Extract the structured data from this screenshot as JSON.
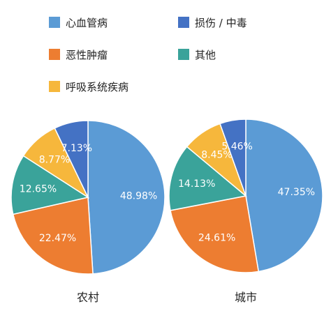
{
  "chart_data": [
    {
      "type": "pie",
      "title": "农村",
      "slices": [
        {
          "label": "心血管病",
          "value": 48.98,
          "display": "48.98%"
        },
        {
          "label": "恶性肿瘤",
          "value": 22.47,
          "display": "22.47%"
        },
        {
          "label": "其他",
          "value": 12.65,
          "display": "12.65%"
        },
        {
          "label": "呼吸系统疾病",
          "value": 8.77,
          "display": "8.77%"
        },
        {
          "label": "损伤 / 中毒",
          "value": 7.13,
          "display": "7.13%"
        }
      ]
    },
    {
      "type": "pie",
      "title": "城市",
      "slices": [
        {
          "label": "心血管病",
          "value": 47.35,
          "display": "47.35%"
        },
        {
          "label": "恶性肿瘤",
          "value": 24.61,
          "display": "24.61%"
        },
        {
          "label": "其他",
          "value": 14.13,
          "display": "14.13%"
        },
        {
          "label": "呼吸系统疾病",
          "value": 8.45,
          "display": "8.45%"
        },
        {
          "label": "损伤 / 中毒",
          "value": 5.46,
          "display": "5.46%"
        }
      ]
    }
  ],
  "legend": [
    {
      "label": "心血管病",
      "color": "#5b9bd5"
    },
    {
      "label": "损伤 / 中毒",
      "color": "#4472c4"
    },
    {
      "label": "恶性肿瘤",
      "color": "#ed7d31"
    },
    {
      "label": "其他",
      "color": "#3aa39a"
    },
    {
      "label": "呼吸系统疾病",
      "color": "#f6b73c"
    }
  ]
}
